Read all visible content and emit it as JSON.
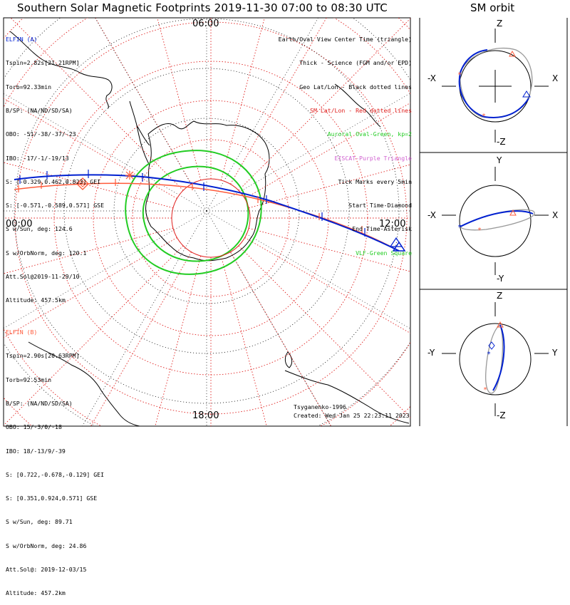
{
  "header": {
    "title": "Southern Solar Magnetic Footprints 2019-11-30 07:00 to 08:30 UTC",
    "orbit_title": "SM orbit"
  },
  "polar_plot": {
    "clock_labels": {
      "top": "06:00",
      "left": "00:00",
      "right": "12:00",
      "bottom": "18:00"
    },
    "colors": {
      "sm_grid": "#e0201e",
      "geo_grid": "#000000",
      "sat_a": "#0020d0",
      "sat_b": "#ff5a3a",
      "auroral_oval": "#22cc22",
      "eiscat": "#d060d0",
      "vlf": "#22cc22"
    }
  },
  "legend": [
    {
      "text": "Earth/Oval View Center Time (triangle)",
      "color": "#000000"
    },
    {
      "text": "Thick - Science (FGM and/or EPD)",
      "color": "#000000"
    },
    {
      "text": "Geo Lat/Lon - Black dotted lines",
      "color": "#000000"
    },
    {
      "text": "SM Lat/Lon - Red dotted lines",
      "color": "#e0201e"
    },
    {
      "text": "Auroral Oval-Green, kp=2",
      "color": "#22cc22"
    },
    {
      "text": "EISCAT-Purple Triangle",
      "color": "#d060d0"
    },
    {
      "text": "Tick Marks every 5min",
      "color": "#000000"
    },
    {
      "text": "Start Time-Diamond",
      "color": "#000000"
    },
    {
      "text": "End Time-Asterisk",
      "color": "#000000"
    },
    {
      "text": "VLF-Green Square",
      "color": "#22cc22"
    }
  ],
  "elfin_a": {
    "name": "ELFIN (A)",
    "color": "#0020d0",
    "lines": [
      "Tspin=2.82s[21.21RPM]",
      "Torb=92.33min",
      "B/SP: (NA/ND/SD/SA)",
      "OBO: -51/-38/-37/-23",
      "IBO: -17/-1/-19/13",
      "S: [-0.329,0.462,0.823] GEI",
      "S: [-0.571,-0.589,0.571] GSE",
      "S w/Sun, deg: 124.6",
      "S w/OrbNorm, deg: 120.1",
      "Att.Sol@2019-11-29/10",
      "Altitude: 457.5km"
    ]
  },
  "elfin_b": {
    "name": "ELFIN (B)",
    "color": "#ff5a3a",
    "lines": [
      "Tspin=2.90s[20.63RPM]",
      "Torb=92.53min",
      "B/SP: (NA/ND/SD/SA)",
      "OBO: 15/-3/0/-18",
      "IBO: 18/-13/9/-39",
      "S: [0.722,-0.678,-0.129] GEI",
      "S: [0.351,0.924,0.571] GSE",
      "S w/Sun, deg: 89.71",
      "S w/OrbNorm, deg: 24.86",
      "Att.Sol@: 2019-12-03/15",
      "Altitude: 457.2km"
    ]
  },
  "credit": {
    "author": "Tsyganenko-1996",
    "created": "Created: Wed Jan 25 22:23:11 2023"
  },
  "sm_orbit_panels": [
    {
      "top": "Z",
      "bottom": "-Z",
      "left": "-X",
      "right": "X"
    },
    {
      "top": "Y",
      "bottom": "-Y",
      "left": "-X",
      "right": "X"
    },
    {
      "top": "Z",
      "bottom": "-Z",
      "left": "-Y",
      "right": "Y"
    }
  ],
  "chart_data": {
    "type": "polar footprint map",
    "title": "Southern Solar Magnetic Footprints 2019-11-30 07:00 to 08:30 UTC",
    "time_range_utc": [
      "07:00",
      "08:30"
    ],
    "tick_interval_min": 5,
    "sm_latitude_circles_deg": [
      -40,
      -50,
      -60,
      -70,
      -80
    ],
    "sm_meridian_spacing_deg": 15,
    "series": [
      {
        "name": "ELFIN (A)",
        "color": "#0020d0"
      },
      {
        "name": "ELFIN (B)",
        "color": "#ff5a3a"
      }
    ]
  }
}
